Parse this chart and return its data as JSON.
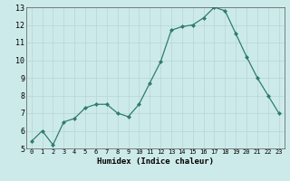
{
  "x": [
    0,
    1,
    2,
    3,
    4,
    5,
    6,
    7,
    8,
    9,
    10,
    11,
    12,
    13,
    14,
    15,
    16,
    17,
    18,
    19,
    20,
    21,
    22,
    23
  ],
  "y": [
    5.4,
    6.0,
    5.2,
    6.5,
    6.7,
    7.3,
    7.5,
    7.5,
    7.0,
    6.8,
    7.5,
    8.7,
    9.9,
    11.7,
    11.9,
    12.0,
    12.4,
    13.0,
    12.8,
    11.5,
    10.2,
    9.0,
    8.0,
    7.0
  ],
  "line_color": "#2e7d6e",
  "marker": "D",
  "marker_size": 2,
  "bg_color": "#cdeaea",
  "grid_color": "#b8d4d4",
  "xlabel": "Humidex (Indice chaleur)",
  "ylim": [
    5,
    13
  ],
  "yticks": [
    5,
    6,
    7,
    8,
    9,
    10,
    11,
    12,
    13
  ],
  "xticks": [
    0,
    1,
    2,
    3,
    4,
    5,
    6,
    7,
    8,
    9,
    10,
    11,
    12,
    13,
    14,
    15,
    16,
    17,
    18,
    19,
    20,
    21,
    22,
    23
  ],
  "xlim": [
    -0.5,
    23.5
  ]
}
